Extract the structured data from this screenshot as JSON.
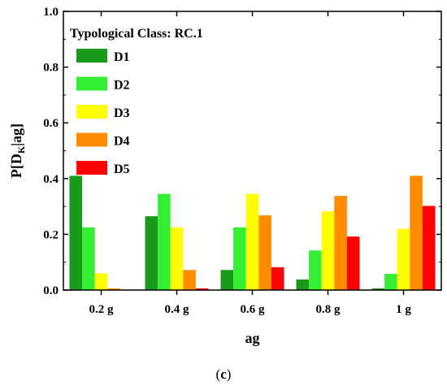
{
  "chart_data": {
    "type": "bar",
    "legend_title": "Typological Class: RC.1",
    "legend_placement": "top-left",
    "xlabel": "ag",
    "ylabel_main": "P[D",
    "ylabel_sub": "K",
    "ylabel_tail": "|ag]",
    "categories": [
      "0.2 g",
      "0.4 g",
      "0.6 g",
      "0.8 g",
      "1 g"
    ],
    "ylim": [
      0,
      1.0
    ],
    "yticks": [
      "0.0",
      "0.2",
      "0.4",
      "0.6",
      "0.8",
      "1.0"
    ],
    "grid": false,
    "series": [
      {
        "name": "D1",
        "color": "#1a9a1a",
        "values": [
          0.41,
          0.265,
          0.072,
          0.038,
          0.006
        ]
      },
      {
        "name": "D2",
        "color": "#33ee33",
        "values": [
          0.225,
          0.345,
          0.225,
          0.142,
          0.058
        ]
      },
      {
        "name": "D3",
        "color": "#ffff00",
        "values": [
          0.06,
          0.225,
          0.345,
          0.282,
          0.22
        ]
      },
      {
        "name": "D4",
        "color": "#ff8c00",
        "values": [
          0.006,
          0.072,
          0.268,
          0.338,
          0.41
        ]
      },
      {
        "name": "D5",
        "color": "#ff0000",
        "values": [
          0.0,
          0.006,
          0.082,
          0.192,
          0.302
        ]
      }
    ]
  },
  "caption_open": "(",
  "caption_letter": "c",
  "caption_close": ")"
}
